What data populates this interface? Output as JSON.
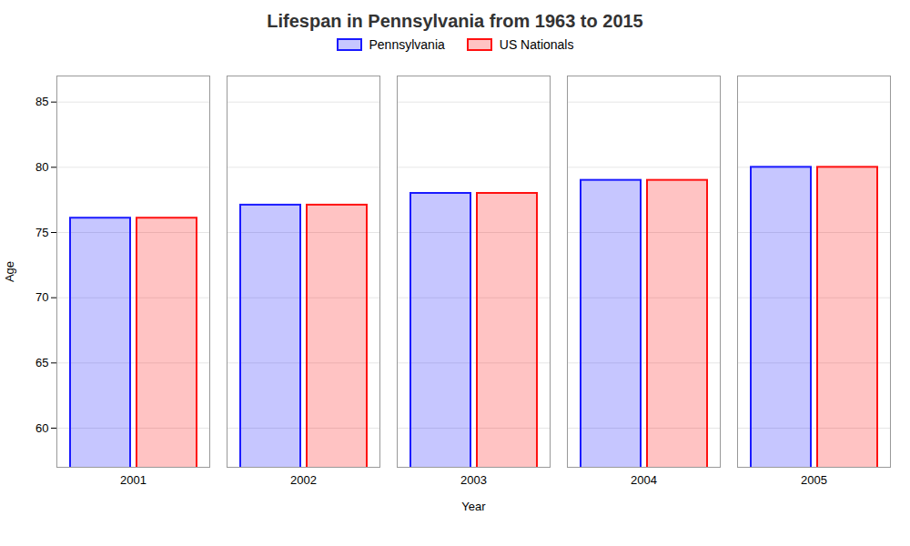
{
  "chart_data": {
    "type": "bar",
    "title": "Lifespan in Pennsylvania from 1963 to 2015",
    "xlabel": "Year",
    "ylabel": "Age",
    "categories": [
      2001,
      2002,
      2003,
      2004,
      2005
    ],
    "series": [
      {
        "name": "Pennsylvania",
        "color": "#1a1aff",
        "values": [
          76.1,
          77.1,
          78.0,
          79.0,
          80.0
        ]
      },
      {
        "name": "US Nationals",
        "color": "#ff1111",
        "values": [
          76.1,
          77.1,
          78.0,
          79.0,
          80.0
        ]
      }
    ],
    "ylim": [
      57,
      87
    ],
    "yticks": [
      60,
      65,
      70,
      75,
      80,
      85
    ],
    "grid": true,
    "legend": "top"
  }
}
